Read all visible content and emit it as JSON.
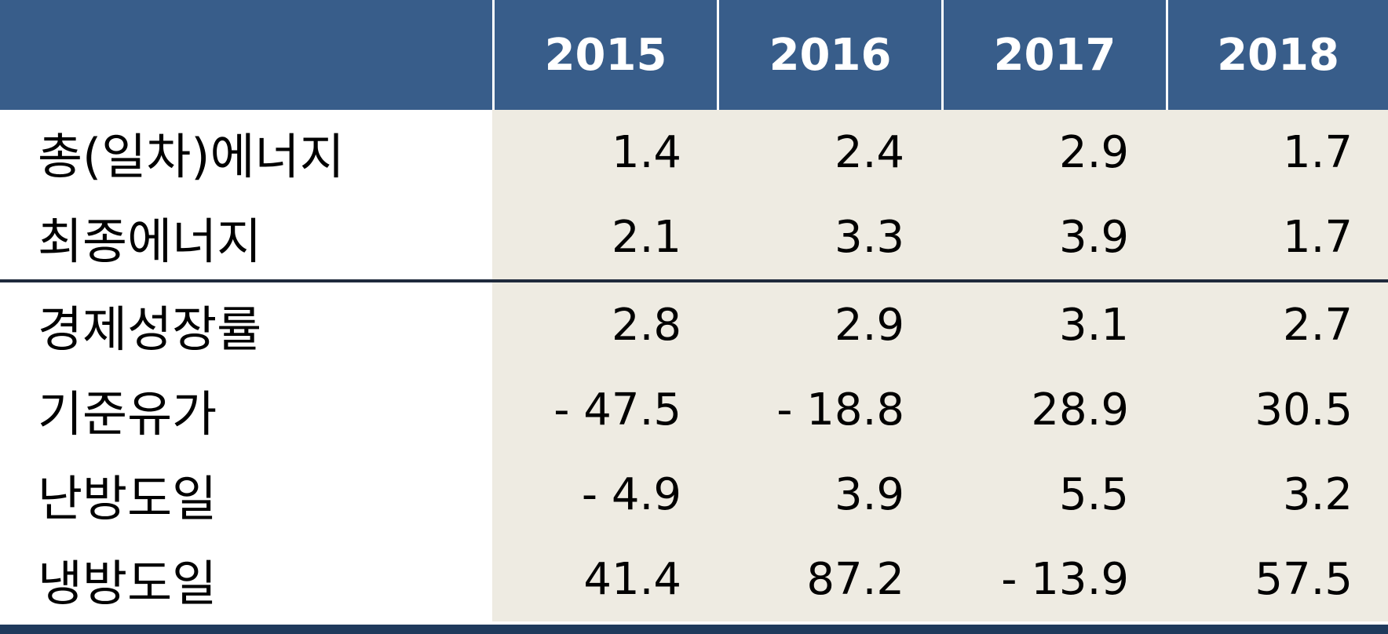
{
  "header": {
    "corner": "",
    "years": [
      "2015",
      "2016",
      "2017",
      "2018"
    ]
  },
  "rows": [
    {
      "label": "총(일차)에너지",
      "values": [
        "1.4",
        "2.4",
        "2.9",
        "1.7"
      ]
    },
    {
      "label": "최종에너지",
      "values": [
        "2.1",
        "3.3",
        "3.9",
        "1.7"
      ]
    },
    {
      "label": "경제성장률",
      "values": [
        "2.8",
        "2.9",
        "3.1",
        "2.7"
      ]
    },
    {
      "label": "기준유가",
      "values": [
        "- 47.5",
        "- 18.8",
        "28.9",
        "30.5"
      ]
    },
    {
      "label": "난방도일",
      "values": [
        "- 4.9",
        "3.9",
        "5.5",
        "3.2"
      ]
    },
    {
      "label": "냉방도일",
      "values": [
        "41.4",
        "87.2",
        "- 13.9",
        "57.5"
      ]
    }
  ],
  "colors": {
    "header_bg": "#385D8A",
    "value_bg": "#EEEBE2",
    "rule": "#1F3A5C"
  }
}
